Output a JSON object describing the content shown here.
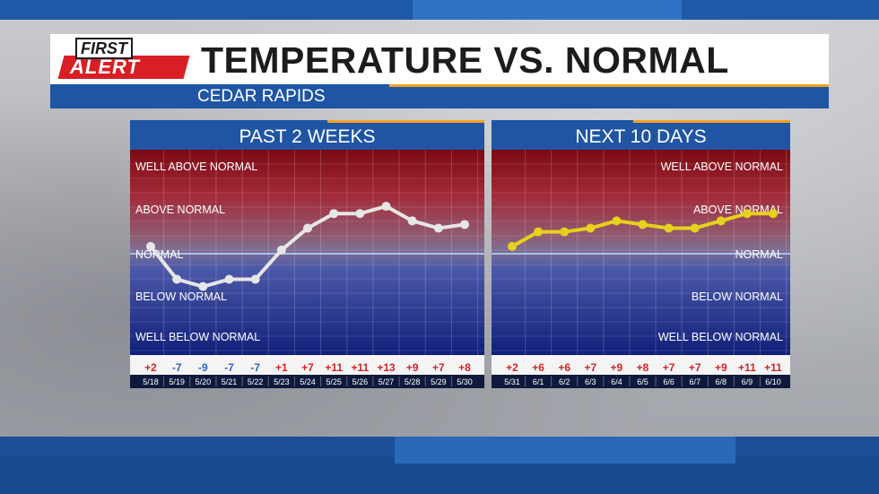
{
  "header": {
    "logo_line1": "FIRST",
    "logo_line2": "ALERT",
    "title": "TEMPERATURE VS. NORMAL",
    "location": "CEDAR RAPIDS"
  },
  "chart_data": [
    {
      "type": "line",
      "title": "PAST 2 WEEKS",
      "x": [
        "5/18",
        "5/19",
        "5/20",
        "5/21",
        "5/22",
        "5/23",
        "5/24",
        "5/25",
        "5/26",
        "5/27",
        "5/28",
        "5/29",
        "5/30"
      ],
      "values": [
        2,
        -7,
        -9,
        -7,
        -7,
        1,
        7,
        11,
        11,
        13,
        9,
        7,
        8
      ],
      "value_labels": [
        "+2",
        "-7",
        "-9",
        "-7",
        "-7",
        "+1",
        "+7",
        "+11",
        "+11",
        "+13",
        "+9",
        "+7",
        "+8"
      ],
      "bands": [
        "WELL ABOVE NORMAL",
        "ABOVE NORMAL",
        "NORMAL",
        "BELOW NORMAL",
        "WELL BELOW NORMAL"
      ],
      "label_side": "left",
      "line_color": "#e6e6e6",
      "ylim": [
        -28,
        28
      ]
    },
    {
      "type": "line",
      "title": "NEXT 10 DAYS",
      "x": [
        "5/31",
        "6/1",
        "6/2",
        "6/3",
        "6/4",
        "6/5",
        "6/6",
        "6/7",
        "6/8",
        "6/9",
        "6/10"
      ],
      "values": [
        2,
        6,
        6,
        7,
        9,
        8,
        7,
        7,
        9,
        11,
        11
      ],
      "value_labels": [
        "+2",
        "+6",
        "+6",
        "+7",
        "+9",
        "+8",
        "+7",
        "+7",
        "+9",
        "+11",
        "+11"
      ],
      "bands": [
        "WELL ABOVE NORMAL",
        "ABOVE NORMAL",
        "NORMAL",
        "BELOW NORMAL",
        "WELL BELOW NORMAL"
      ],
      "label_side": "right",
      "line_color": "#e6d21a",
      "ylim": [
        -28,
        28
      ]
    }
  ],
  "colors": {
    "positive": "#d4232a",
    "negative": "#2f62c2",
    "panel_header": "#1f55a3",
    "accent": "#f6a21e"
  }
}
